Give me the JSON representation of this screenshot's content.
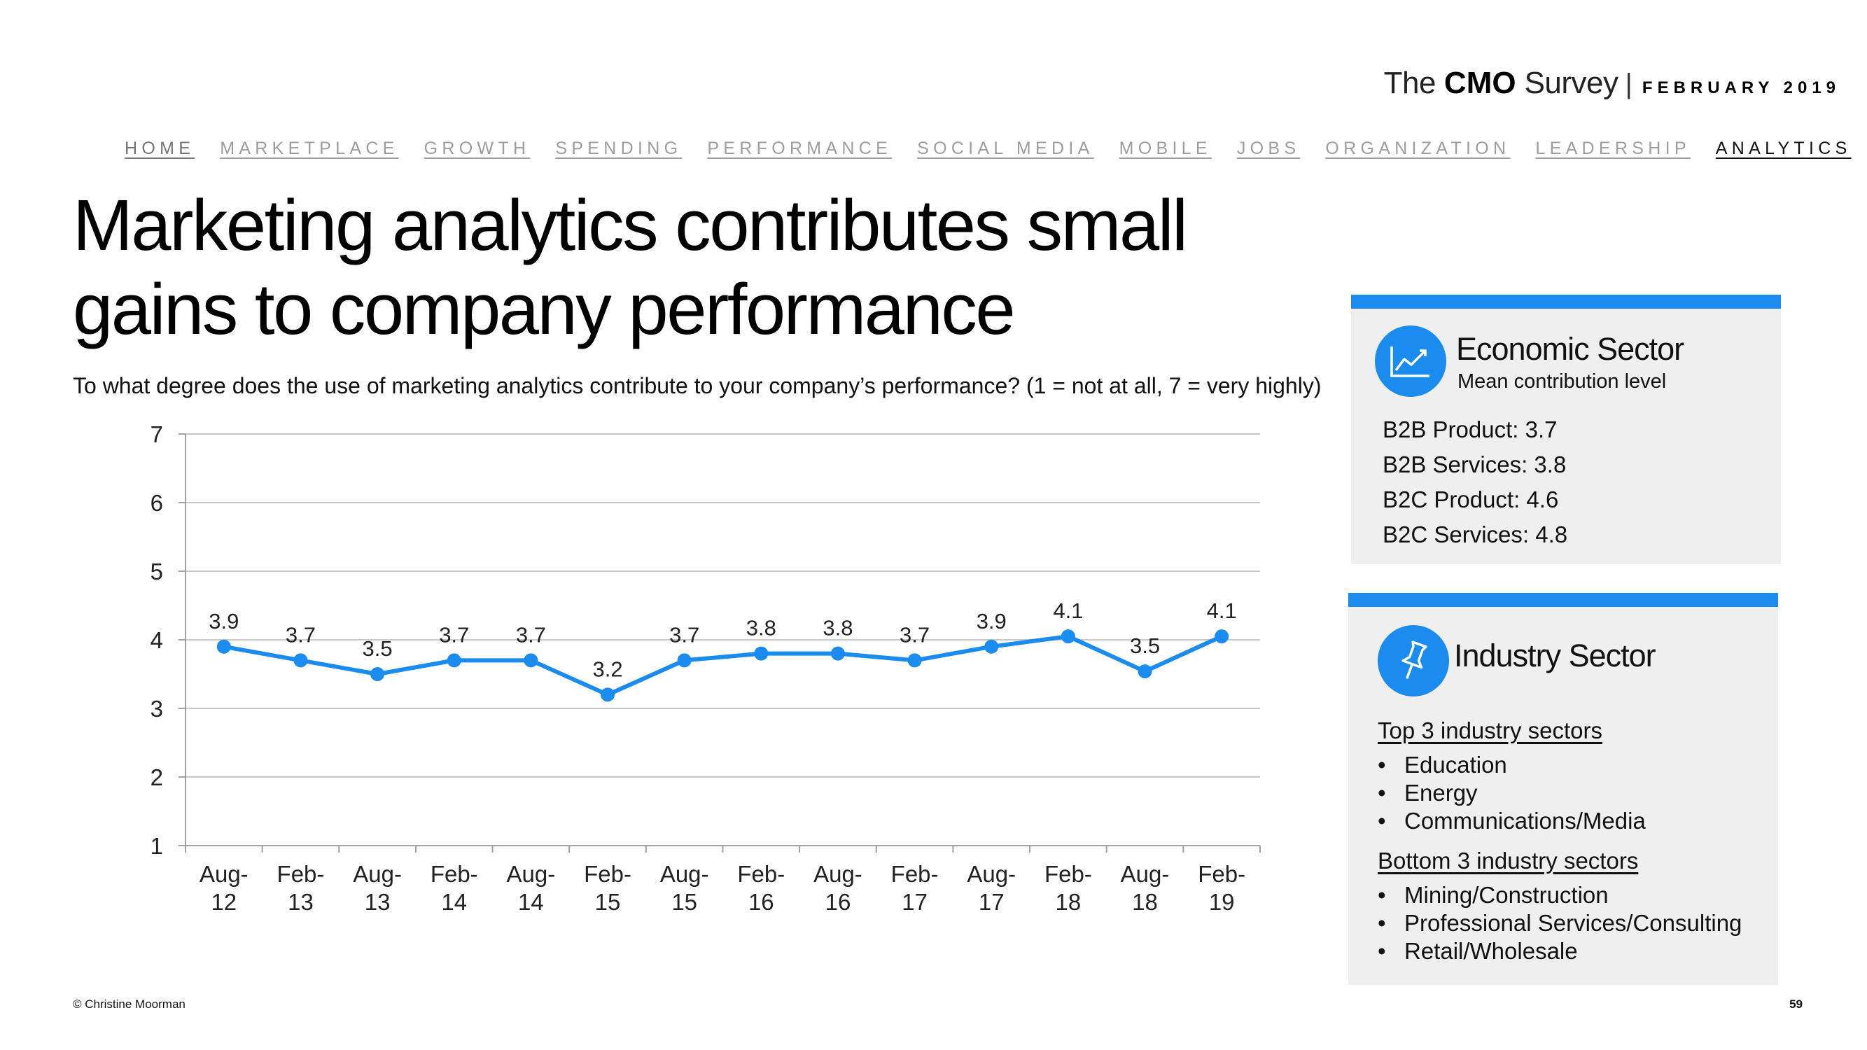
{
  "brand": {
    "the": "The",
    "cmo": "CMO",
    "survey": "Survey",
    "separator": "|",
    "date": "FEBRUARY 2019"
  },
  "nav": [
    "HOME",
    "MARKETPLACE",
    "GROWTH",
    "SPENDING",
    "PERFORMANCE",
    "SOCIAL MEDIA",
    "MOBILE",
    "JOBS",
    "ORGANIZATION",
    "LEADERSHIP",
    "ANALYTICS"
  ],
  "title": "Marketing analytics contributes small gains to company performance",
  "subtitle": "To what degree does the use of marketing analytics contribute to your company’s performance? (1 = not at all, 7 = very highly)",
  "chart_data": {
    "type": "line",
    "categories": [
      [
        "Aug-",
        "12"
      ],
      [
        "Feb-",
        "13"
      ],
      [
        "Aug-",
        "13"
      ],
      [
        "Feb-",
        "14"
      ],
      [
        "Aug-",
        "14"
      ],
      [
        "Feb-",
        "15"
      ],
      [
        "Aug-",
        "15"
      ],
      [
        "Feb-",
        "16"
      ],
      [
        "Aug-",
        "16"
      ],
      [
        "Feb-",
        "17"
      ],
      [
        "Aug-",
        "17"
      ],
      [
        "Feb-",
        "18"
      ],
      [
        "Aug-",
        "18"
      ],
      [
        "Feb-",
        "19"
      ]
    ],
    "values": [
      3.9,
      3.7,
      3.5,
      3.7,
      3.7,
      3.2,
      3.7,
      3.8,
      3.8,
      3.7,
      3.9,
      4.05,
      3.54,
      4.05
    ],
    "labels": [
      "3.9",
      "3.7",
      "3.5",
      "3.7",
      "3.7",
      "3.2",
      "3.7",
      "3.8",
      "3.8",
      "3.7",
      "3.9",
      "4.1",
      "3.5",
      "4.1"
    ],
    "yticks": [
      1,
      2,
      3,
      4,
      5,
      6,
      7
    ],
    "ylim": [
      1,
      7
    ],
    "grid": true,
    "line_color": "#1a8cf0"
  },
  "economic": {
    "icon": "line-chart-icon",
    "title": "Economic Sector",
    "subtitle": "Mean contribution level",
    "items": [
      "B2B Product: 3.7",
      "B2B Services: 3.8",
      "B2C Product: 4.6",
      "B2C Services: 4.8"
    ]
  },
  "industry": {
    "icon": "pushpin-icon",
    "title": "Industry Sector",
    "top_heading": "Top 3 industry sectors",
    "top": [
      "Education",
      "Energy",
      "Communications/Media"
    ],
    "bottom_heading": "Bottom 3 industry sectors",
    "bottom": [
      "Mining/Construction",
      "Professional Services/Consulting",
      "Retail/Wholesale"
    ],
    "bullet": "•"
  },
  "colors": {
    "accent": "#1a8cf0",
    "panel": "#efefef"
  },
  "footer": "© Christine Moorman",
  "page_number": "59"
}
